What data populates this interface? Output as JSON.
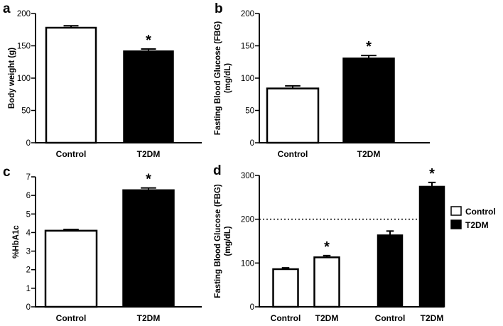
{
  "chart_data": [
    {
      "id": "a",
      "panel_label": "a",
      "type": "bar",
      "categories": [
        "Control",
        "T2DM"
      ],
      "values": [
        178,
        142
      ],
      "errors": [
        3,
        3
      ],
      "bar_fills": [
        "#ffffff",
        "#000000"
      ],
      "significant": [
        false,
        true
      ],
      "sig_mark": "*",
      "ylabel": "Body weight (g)",
      "ylim": [
        0,
        200
      ],
      "yticks": [
        0,
        50,
        100,
        150,
        200
      ],
      "ytick_labels": [
        "0",
        "50",
        "100",
        "150",
        "200"
      ]
    },
    {
      "id": "b",
      "panel_label": "b",
      "type": "bar",
      "categories": [
        "Control",
        "T2DM"
      ],
      "values": [
        84,
        131
      ],
      "errors": [
        4,
        4
      ],
      "bar_fills": [
        "#ffffff",
        "#000000"
      ],
      "significant": [
        false,
        true
      ],
      "sig_mark": "*",
      "ylabel": "Fasting Blood Glucose (FBG)",
      "ylabel_line2": "(mg/dL)",
      "ylim": [
        0,
        200
      ],
      "yticks": [
        0,
        50,
        100,
        150,
        200
      ],
      "ytick_labels": [
        "0",
        "50",
        "100",
        "150",
        "200"
      ]
    },
    {
      "id": "c",
      "panel_label": "c",
      "type": "bar",
      "categories": [
        "Control",
        "T2DM"
      ],
      "values": [
        4.1,
        6.3
      ],
      "errors": [
        0.07,
        0.1
      ],
      "bar_fills": [
        "#ffffff",
        "#000000"
      ],
      "significant": [
        false,
        true
      ],
      "sig_mark": "*",
      "ylabel": "%HbA1c",
      "ylim": [
        0,
        7
      ],
      "yticks": [
        0,
        1,
        2,
        3,
        4,
        5,
        6,
        7
      ],
      "ytick_labels": [
        "0",
        "1",
        "2",
        "3",
        "4",
        "5",
        "6",
        "7"
      ]
    },
    {
      "id": "d",
      "panel_label": "d",
      "type": "bar",
      "groups": [
        "Control",
        "T2DM"
      ],
      "categories": [
        "Control",
        "T2DM",
        "Control",
        "T2DM"
      ],
      "values": [
        86,
        113,
        164,
        275
      ],
      "errors": [
        3,
        4,
        9,
        9
      ],
      "bar_fills": [
        "#ffffff",
        "#ffffff",
        "#000000",
        "#000000"
      ],
      "significant": [
        false,
        true,
        false,
        true
      ],
      "sig_mark": "*",
      "ylabel": "Fasting Blood Glucose (FBG)",
      "ylabel_line2": "(mg/dL)",
      "ylim": [
        0,
        300
      ],
      "yticks": [
        0,
        100,
        200,
        300
      ],
      "ytick_labels": [
        "0",
        "100",
        "200",
        "300"
      ],
      "reference_line": 200,
      "legend": [
        {
          "label": "Control",
          "fill": "#ffffff"
        },
        {
          "label": "T2DM",
          "fill": "#000000"
        }
      ],
      "legend_position": "right"
    }
  ]
}
